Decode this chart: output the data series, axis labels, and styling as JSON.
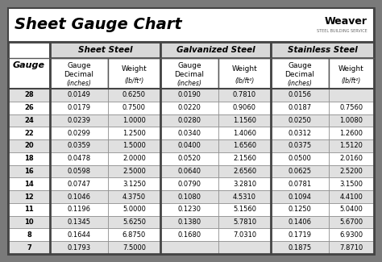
{
  "title": "Sheet Gauge Chart",
  "background_outer": "#7a7a7a",
  "background_white": "#ffffff",
  "background_light_gray": "#e8e8e8",
  "background_table": "#ffffff",
  "header_section_bg": "#d8d8d8",
  "border_color": "#555555",
  "border_thick": "#444444",
  "gauges": [
    28,
    26,
    24,
    22,
    20,
    18,
    16,
    14,
    12,
    11,
    10,
    8,
    7
  ],
  "sheet_steel": {
    "decimal": [
      "0.0149",
      "0.0179",
      "0.0239",
      "0.0299",
      "0.0359",
      "0.0478",
      "0.0598",
      "0.0747",
      "0.1046",
      "0.1196",
      "0.1345",
      "0.1644",
      "0.1793"
    ],
    "weight": [
      "0.6250",
      "0.7500",
      "1.0000",
      "1.2500",
      "1.5000",
      "2.0000",
      "2.5000",
      "3.1250",
      "4.3750",
      "5.0000",
      "5.6250",
      "6.8750",
      "7.5000"
    ]
  },
  "galvanized_steel": {
    "decimal": [
      "0.0190",
      "0.0220",
      "0.0280",
      "0.0340",
      "0.0400",
      "0.0520",
      "0.0640",
      "0.0790",
      "0.1080",
      "0.1230",
      "0.1380",
      "0.1680",
      ""
    ],
    "weight": [
      "0.7810",
      "0.9060",
      "1.1560",
      "1.4060",
      "1.6560",
      "2.1560",
      "2.6560",
      "3.2810",
      "4.5310",
      "5.1560",
      "5.7810",
      "7.0310",
      ""
    ]
  },
  "stainless_steel": {
    "decimal": [
      "0.0156",
      "0.0187",
      "0.0250",
      "0.0312",
      "0.0375",
      "0.0500",
      "0.0625",
      "0.0781",
      "0.1094",
      "0.1250",
      "0.1406",
      "0.1719",
      "0.1875"
    ],
    "weight": [
      "",
      "0.7560",
      "1.0080",
      "1.2600",
      "1.5120",
      "2.0160",
      "2.5200",
      "3.1500",
      "4.4100",
      "5.0400",
      "5.6700",
      "6.9300",
      "7.8710"
    ]
  },
  "col_section_headers": [
    "Sheet Steel",
    "Galvanized Steel",
    "Stainless Steel"
  ],
  "row_colors": [
    "#e0e0e0",
    "#ffffff",
    "#e0e0e0",
    "#ffffff",
    "#e0e0e0",
    "#ffffff",
    "#e0e0e0",
    "#ffffff",
    "#e0e0e0",
    "#ffffff",
    "#e0e0e0",
    "#ffffff",
    "#e0e0e0"
  ]
}
